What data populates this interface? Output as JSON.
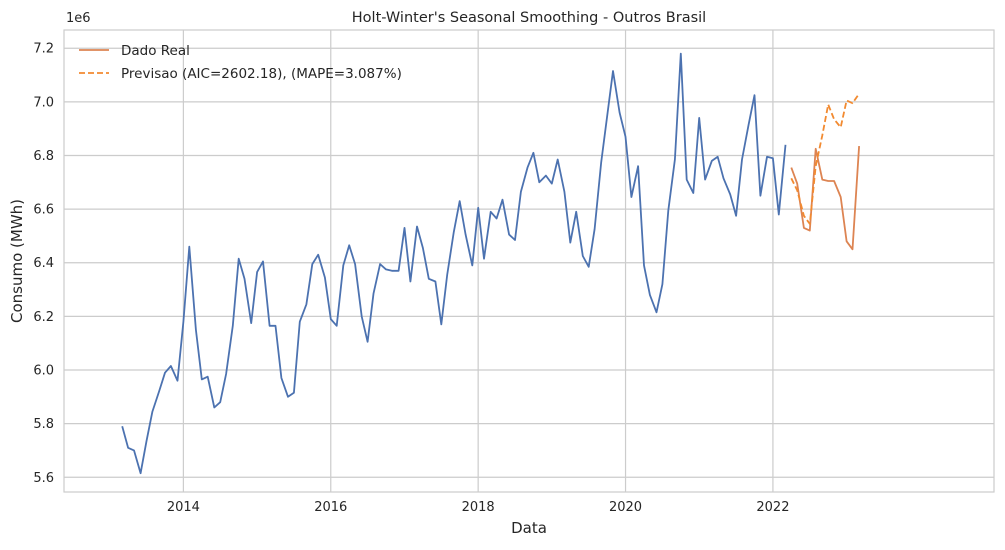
{
  "chart_data": {
    "type": "line",
    "title": "Holt-Winter's Seasonal Smoothing - Outros Brasil",
    "xlabel": "Data",
    "ylabel": "Consumo (MWh)",
    "y_offset_label": "1e6",
    "xlim": [
      2012.38,
      2025.0
    ],
    "ylim": [
      5.545,
      7.268
    ],
    "x_ticks": [
      2014,
      2016,
      2018,
      2020,
      2022
    ],
    "x_tick_labels": [
      "2014",
      "2016",
      "2018",
      "2020",
      "2022"
    ],
    "y_ticks": [
      5.6,
      5.8,
      6.0,
      6.2,
      6.4,
      6.6,
      6.8,
      7.0,
      7.2
    ],
    "y_tick_labels": [
      "5.6",
      "5.8",
      "6.0",
      "6.2",
      "6.4",
      "6.6",
      "6.8",
      "7.0",
      "7.2"
    ],
    "grid": true,
    "legend_position": "top-left",
    "colors": {
      "train": "#4c72b0",
      "real": "#dd8452",
      "forecast": "#f28a30",
      "grid": "#cccccc",
      "axes": "#cccccc"
    },
    "legend": [
      {
        "label": "Dado Real",
        "style": "solid",
        "color": "#dd8452"
      },
      {
        "label": "Previsao (AIC=2602.18), (MAPE=3.087%)",
        "style": "dashed",
        "color": "#f28a30"
      }
    ],
    "series": [
      {
        "style": "solid",
        "color": "#4c72b0",
        "x": [
          2013.17,
          2013.25,
          2013.33,
          2013.42,
          2013.5,
          2013.58,
          2013.67,
          2013.75,
          2013.83,
          2013.92,
          2014.0,
          2014.08,
          2014.17,
          2014.25,
          2014.33,
          2014.42,
          2014.5,
          2014.58,
          2014.67,
          2014.75,
          2014.83,
          2014.92,
          2015.0,
          2015.08,
          2015.17,
          2015.25,
          2015.33,
          2015.42,
          2015.5,
          2015.58,
          2015.67,
          2015.75,
          2015.83,
          2015.92,
          2016.0,
          2016.08,
          2016.17,
          2016.25,
          2016.33,
          2016.42,
          2016.5,
          2016.58,
          2016.67,
          2016.75,
          2016.83,
          2016.92,
          2017.0,
          2017.08,
          2017.17,
          2017.25,
          2017.33,
          2017.42,
          2017.5,
          2017.58,
          2017.67,
          2017.75,
          2017.83,
          2017.92,
          2018.0,
          2018.08,
          2018.17,
          2018.25,
          2018.33,
          2018.42,
          2018.5,
          2018.58,
          2018.67,
          2018.75,
          2018.83,
          2018.92,
          2019.0,
          2019.08,
          2019.17,
          2019.25,
          2019.33,
          2019.42,
          2019.5,
          2019.58,
          2019.67,
          2019.75,
          2019.83,
          2019.92,
          2020.0,
          2020.08,
          2020.17,
          2020.25,
          2020.33,
          2020.42,
          2020.5,
          2020.58,
          2020.67,
          2020.75,
          2020.83,
          2020.92,
          2021.0,
          2021.08,
          2021.17,
          2021.25,
          2021.33,
          2021.42,
          2021.5,
          2021.58,
          2021.67,
          2021.75,
          2021.83,
          2021.92,
          2022.0,
          2022.08,
          2022.17
        ],
        "y": [
          5.79,
          5.71,
          5.7,
          5.615,
          5.735,
          5.845,
          5.92,
          5.99,
          6.015,
          5.96,
          6.18,
          6.46,
          6.15,
          5.965,
          5.975,
          5.86,
          5.88,
          5.985,
          6.165,
          6.415,
          6.34,
          6.175,
          6.365,
          6.405,
          6.165,
          6.165,
          5.97,
          5.9,
          5.915,
          6.18,
          6.245,
          6.395,
          6.43,
          6.345,
          6.19,
          6.165,
          6.39,
          6.465,
          6.395,
          6.2,
          6.105,
          6.285,
          6.395,
          6.375,
          6.37,
          6.37,
          6.53,
          6.33,
          6.535,
          6.455,
          6.34,
          6.33,
          6.17,
          6.355,
          6.515,
          6.63,
          6.505,
          6.39,
          6.605,
          6.415,
          6.59,
          6.565,
          6.635,
          6.505,
          6.485,
          6.665,
          6.755,
          6.81,
          6.7,
          6.725,
          6.695,
          6.785,
          6.665,
          6.475,
          6.59,
          6.425,
          6.385,
          6.525,
          6.775,
          6.945,
          7.115,
          6.96,
          6.87,
          6.645,
          6.76,
          6.39,
          6.28,
          6.215,
          6.32,
          6.595,
          6.785,
          7.18,
          6.71,
          6.66,
          6.94,
          6.71,
          6.78,
          6.795,
          6.715,
          6.655,
          6.575,
          6.785,
          6.915,
          7.025,
          6.65,
          6.795,
          6.79,
          6.58,
          6.84
        ]
      },
      {
        "name": "Dado Real",
        "style": "solid",
        "color": "#dd8452",
        "x": [
          2022.25,
          2022.33,
          2022.42,
          2022.5,
          2022.58,
          2022.67,
          2022.75,
          2022.83,
          2022.92,
          2023.0,
          2023.08,
          2023.17
        ],
        "y": [
          6.755,
          6.695,
          6.53,
          6.52,
          6.825,
          6.71,
          6.705,
          6.705,
          6.645,
          6.48,
          6.45,
          6.835
        ]
      },
      {
        "name": "Previsao (AIC=2602.18), (MAPE=3.087%)",
        "style": "dashed",
        "color": "#f28a30",
        "x": [
          2022.25,
          2022.33,
          2022.42,
          2022.5,
          2022.58,
          2022.67,
          2022.75,
          2022.83,
          2022.92,
          2023.0,
          2023.08,
          2023.17
        ],
        "y": [
          6.715,
          6.67,
          6.575,
          6.545,
          6.76,
          6.875,
          6.99,
          6.935,
          6.905,
          7.005,
          6.995,
          7.03
        ]
      }
    ]
  }
}
